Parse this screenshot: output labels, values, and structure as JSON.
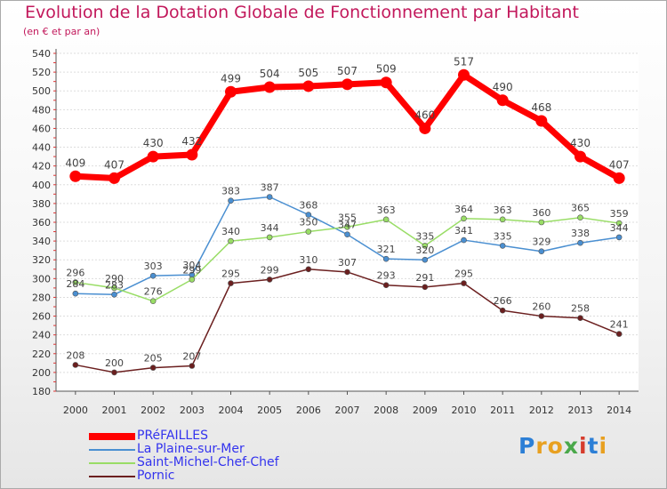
{
  "chart_data": {
    "type": "line",
    "title": "Evolution de la Dotation Globale de Fonctionnement par Habitant",
    "subtitle": "(en € et par an)",
    "xlabel": "",
    "ylabel": "",
    "ylim": [
      180,
      540
    ],
    "yticks": [
      180,
      200,
      220,
      240,
      260,
      280,
      300,
      320,
      340,
      360,
      380,
      400,
      420,
      440,
      460,
      480,
      500,
      520,
      540
    ],
    "categories": [
      "2000",
      "2001",
      "2002",
      "2003",
      "2004",
      "2005",
      "2006",
      "2007",
      "2008",
      "2009",
      "2010",
      "2011",
      "2012",
      "2013",
      "2014"
    ],
    "grid": "horizontal",
    "legend_position": "bottom-left",
    "series": [
      {
        "name": "PRéFAILLES",
        "color": "#ff0000",
        "text_color": "#3333ee",
        "values": [
          409,
          407,
          430,
          432,
          499,
          504,
          505,
          507,
          509,
          460,
          517,
          490,
          468,
          430,
          407
        ]
      },
      {
        "name": "La Plaine-sur-Mer",
        "color": "#4a8fd1",
        "text_color": "#3333ee",
        "values": [
          284,
          283,
          303,
          304,
          383,
          387,
          368,
          347,
          321,
          320,
          341,
          335,
          329,
          338,
          344
        ]
      },
      {
        "name": "Saint-Michel-Chef-Chef",
        "color": "#99dd66",
        "text_color": "#3333ee",
        "values": [
          296,
          290,
          276,
          299,
          340,
          344,
          350,
          355,
          363,
          335,
          364,
          363,
          360,
          365,
          359
        ]
      },
      {
        "name": "Pornic",
        "color": "#6b1f1f",
        "text_color": "#3333ee",
        "values": [
          208,
          200,
          205,
          207,
          295,
          299,
          310,
          307,
          293,
          291,
          295,
          266,
          260,
          258,
          241
        ]
      }
    ]
  },
  "brand": {
    "letters": [
      "P",
      "r",
      "o",
      "x",
      "i",
      "t",
      "i"
    ],
    "colors": [
      "#2c7fd6",
      "#e8a020",
      "#e8a020",
      "#4aa84a",
      "#d63c2c",
      "#2c7fd6",
      "#e8a020"
    ]
  }
}
